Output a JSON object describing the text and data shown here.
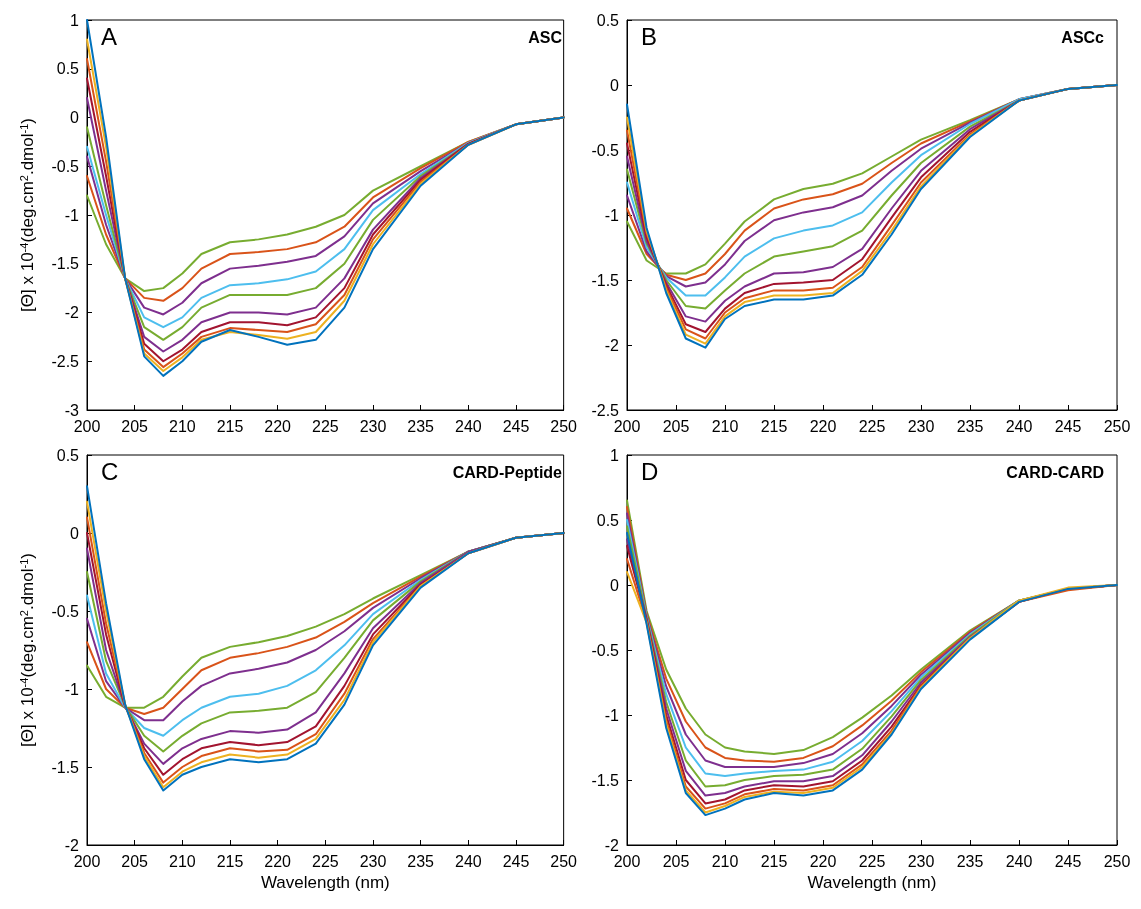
{
  "chart_data": [
    {
      "type": "line",
      "title": "ASC",
      "annotations": [
        "A"
      ],
      "ylabel": "[Θ] x 10$^{-4}$(deg.cm$^{2}$.dmol$^{-1}$)",
      "marker": "none",
      "xlim": [
        200,
        250
      ],
      "xticks": [
        200,
        205,
        210,
        215,
        220,
        225,
        230,
        235,
        240,
        245,
        250
      ],
      "ylim": [
        -3,
        1
      ],
      "yticks": [
        -3,
        -2.5,
        -2,
        -1.5,
        -1,
        -0.5,
        0,
        0.5,
        1
      ],
      "x": [
        200,
        202,
        204,
        206,
        208,
        210,
        212,
        215,
        218,
        221,
        224,
        227,
        230,
        235,
        240,
        245,
        250
      ],
      "series": [
        {
          "color": "#77ac30",
          "values": [
            -0.8,
            -1.3,
            -1.65,
            -1.78,
            -1.75,
            -1.6,
            -1.4,
            -1.28,
            -1.25,
            -1.2,
            -1.12,
            -1.0,
            -0.75,
            -0.5,
            -0.25,
            -0.07,
            0
          ]
        },
        {
          "color": "#d95319",
          "values": [
            -0.6,
            -1.2,
            -1.65,
            -1.85,
            -1.88,
            -1.75,
            -1.55,
            -1.4,
            -1.38,
            -1.35,
            -1.28,
            -1.12,
            -0.82,
            -0.52,
            -0.25,
            -0.07,
            0
          ]
        },
        {
          "color": "#7e2f8e",
          "values": [
            -0.4,
            -1.1,
            -1.65,
            -1.95,
            -2.02,
            -1.9,
            -1.7,
            -1.55,
            -1.52,
            -1.48,
            -1.42,
            -1.22,
            -0.88,
            -0.55,
            -0.26,
            -0.07,
            0
          ]
        },
        {
          "color": "#4dbeee",
          "values": [
            -0.3,
            -1.0,
            -1.65,
            -2.05,
            -2.15,
            -2.05,
            -1.85,
            -1.72,
            -1.7,
            -1.66,
            -1.58,
            -1.35,
            -0.95,
            -0.58,
            -0.26,
            -0.07,
            0
          ]
        },
        {
          "color": "#77ac30",
          "values": [
            -0.1,
            -0.9,
            -1.65,
            -2.15,
            -2.28,
            -2.15,
            -1.95,
            -1.82,
            -1.82,
            -1.82,
            -1.75,
            -1.5,
            -1.05,
            -0.6,
            -0.27,
            -0.07,
            0
          ]
        },
        {
          "color": "#7e2f8e",
          "values": [
            0.2,
            -0.75,
            -1.65,
            -2.25,
            -2.4,
            -2.28,
            -2.1,
            -2.0,
            -2.0,
            -2.02,
            -1.95,
            -1.65,
            -1.15,
            -0.62,
            -0.27,
            -0.07,
            0
          ]
        },
        {
          "color": "#a2142f",
          "values": [
            0.4,
            -0.6,
            -1.65,
            -2.32,
            -2.5,
            -2.38,
            -2.2,
            -2.1,
            -2.1,
            -2.13,
            -2.05,
            -1.75,
            -1.2,
            -0.64,
            -0.27,
            -0.07,
            0
          ]
        },
        {
          "color": "#d95319",
          "values": [
            0.6,
            -0.45,
            -1.65,
            -2.38,
            -2.56,
            -2.42,
            -2.25,
            -2.16,
            -2.18,
            -2.2,
            -2.12,
            -1.82,
            -1.25,
            -0.66,
            -0.28,
            -0.07,
            0
          ]
        },
        {
          "color": "#edb120",
          "values": [
            0.8,
            -0.3,
            -1.65,
            -2.42,
            -2.6,
            -2.46,
            -2.28,
            -2.2,
            -2.23,
            -2.27,
            -2.2,
            -1.88,
            -1.3,
            -0.68,
            -0.28,
            -0.07,
            0
          ]
        },
        {
          "color": "#0072bd",
          "values": [
            1.0,
            -0.2,
            -1.65,
            -2.45,
            -2.65,
            -2.5,
            -2.3,
            -2.18,
            -2.25,
            -2.33,
            -2.28,
            -1.95,
            -1.35,
            -0.7,
            -0.28,
            -0.07,
            0
          ]
        }
      ]
    },
    {
      "type": "line",
      "title": "ASCc",
      "annotations": [
        "B"
      ],
      "marker": "none",
      "xlim": [
        200,
        250
      ],
      "xticks": [
        200,
        205,
        210,
        215,
        220,
        225,
        230,
        235,
        240,
        245,
        250
      ],
      "ylim": [
        -2.5,
        0.5
      ],
      "yticks": [
        -2.5,
        -2,
        -1.5,
        -1,
        -0.5,
        0,
        0.5
      ],
      "x": [
        200,
        202,
        204,
        206,
        208,
        210,
        212,
        215,
        218,
        221,
        224,
        227,
        230,
        235,
        240,
        245,
        250
      ],
      "series": [
        {
          "color": "#77ac30",
          "values": [
            -1.05,
            -1.35,
            -1.45,
            -1.45,
            -1.38,
            -1.22,
            -1.05,
            -0.88,
            -0.8,
            -0.76,
            -0.68,
            -0.55,
            -0.42,
            -0.27,
            -0.11,
            -0.03,
            0
          ]
        },
        {
          "color": "#d95319",
          "values": [
            -0.95,
            -1.3,
            -1.46,
            -1.5,
            -1.45,
            -1.3,
            -1.12,
            -0.95,
            -0.88,
            -0.84,
            -0.76,
            -0.6,
            -0.45,
            -0.28,
            -0.11,
            -0.03,
            0
          ]
        },
        {
          "color": "#7e2f8e",
          "values": [
            -0.85,
            -1.28,
            -1.47,
            -1.55,
            -1.52,
            -1.38,
            -1.2,
            -1.04,
            -0.98,
            -0.94,
            -0.85,
            -0.66,
            -0.49,
            -0.29,
            -0.11,
            -0.03,
            0
          ]
        },
        {
          "color": "#4dbeee",
          "values": [
            -0.75,
            -1.25,
            -1.48,
            -1.62,
            -1.62,
            -1.48,
            -1.32,
            -1.18,
            -1.12,
            -1.08,
            -0.98,
            -0.75,
            -0.54,
            -0.3,
            -0.11,
            -0.03,
            0
          ]
        },
        {
          "color": "#77ac30",
          "values": [
            -0.65,
            -1.22,
            -1.5,
            -1.7,
            -1.72,
            -1.58,
            -1.45,
            -1.32,
            -1.28,
            -1.24,
            -1.12,
            -0.85,
            -0.6,
            -0.32,
            -0.12,
            -0.03,
            0
          ]
        },
        {
          "color": "#7e2f8e",
          "values": [
            -0.55,
            -1.2,
            -1.52,
            -1.78,
            -1.82,
            -1.66,
            -1.55,
            -1.45,
            -1.44,
            -1.4,
            -1.26,
            -0.95,
            -0.66,
            -0.34,
            -0.12,
            -0.03,
            0
          ]
        },
        {
          "color": "#a2142f",
          "values": [
            -0.45,
            -1.17,
            -1.54,
            -1.84,
            -1.9,
            -1.72,
            -1.6,
            -1.53,
            -1.52,
            -1.5,
            -1.34,
            -1.02,
            -0.71,
            -0.36,
            -0.12,
            -0.03,
            0
          ]
        },
        {
          "color": "#d95319",
          "values": [
            -0.35,
            -1.14,
            -1.56,
            -1.88,
            -1.95,
            -1.75,
            -1.64,
            -1.58,
            -1.58,
            -1.56,
            -1.4,
            -1.08,
            -0.75,
            -0.38,
            -0.12,
            -0.03,
            0
          ]
        },
        {
          "color": "#edb120",
          "values": [
            -0.25,
            -1.12,
            -1.58,
            -1.92,
            -1.99,
            -1.78,
            -1.67,
            -1.62,
            -1.62,
            -1.6,
            -1.43,
            -1.12,
            -0.78,
            -0.39,
            -0.12,
            -0.03,
            0
          ]
        },
        {
          "color": "#0072bd",
          "values": [
            -0.15,
            -1.1,
            -1.6,
            -1.95,
            -2.02,
            -1.8,
            -1.7,
            -1.65,
            -1.65,
            -1.62,
            -1.46,
            -1.15,
            -0.8,
            -0.4,
            -0.12,
            -0.03,
            0
          ]
        }
      ]
    },
    {
      "type": "line",
      "title": "CARD-Peptide",
      "annotations": [
        "C"
      ],
      "xlabel": "Wavelength (nm)",
      "ylabel": "[Θ] x 10$^{-4}$(deg.cm$^{2}$.dmol$^{-1}$)",
      "marker": "none",
      "xlim": [
        200,
        250
      ],
      "xticks": [
        200,
        205,
        210,
        215,
        220,
        225,
        230,
        235,
        240,
        245,
        250
      ],
      "ylim": [
        -2,
        0.5
      ],
      "yticks": [
        -2,
        -1.5,
        -1,
        -0.5,
        0,
        0.5
      ],
      "x": [
        200,
        202,
        204,
        206,
        208,
        210,
        212,
        215,
        218,
        221,
        224,
        227,
        230,
        235,
        240,
        245,
        250
      ],
      "series": [
        {
          "color": "#77ac30",
          "values": [
            -0.85,
            -1.05,
            -1.12,
            -1.12,
            -1.05,
            -0.92,
            -0.8,
            -0.73,
            -0.7,
            -0.66,
            -0.6,
            -0.52,
            -0.42,
            -0.27,
            -0.12,
            -0.03,
            0
          ]
        },
        {
          "color": "#d95319",
          "values": [
            -0.7,
            -1.0,
            -1.12,
            -1.16,
            -1.12,
            -1.0,
            -0.88,
            -0.8,
            -0.77,
            -0.73,
            -0.67,
            -0.57,
            -0.45,
            -0.28,
            -0.12,
            -0.03,
            0
          ]
        },
        {
          "color": "#7e2f8e",
          "values": [
            -0.55,
            -0.95,
            -1.12,
            -1.2,
            -1.2,
            -1.08,
            -0.98,
            -0.9,
            -0.87,
            -0.83,
            -0.75,
            -0.63,
            -0.48,
            -0.29,
            -0.12,
            -0.03,
            0
          ]
        },
        {
          "color": "#4dbeee",
          "values": [
            -0.4,
            -0.9,
            -1.12,
            -1.25,
            -1.3,
            -1.2,
            -1.12,
            -1.05,
            -1.03,
            -0.98,
            -0.88,
            -0.72,
            -0.52,
            -0.3,
            -0.12,
            -0.03,
            0
          ]
        },
        {
          "color": "#77ac30",
          "values": [
            -0.25,
            -0.82,
            -1.11,
            -1.3,
            -1.4,
            -1.3,
            -1.22,
            -1.15,
            -1.14,
            -1.12,
            -1.02,
            -0.8,
            -0.56,
            -0.31,
            -0.12,
            -0.03,
            0
          ]
        },
        {
          "color": "#7e2f8e",
          "values": [
            -0.1,
            -0.75,
            -1.11,
            -1.35,
            -1.48,
            -1.38,
            -1.32,
            -1.27,
            -1.28,
            -1.26,
            -1.15,
            -0.9,
            -0.61,
            -0.32,
            -0.12,
            -0.03,
            0
          ]
        },
        {
          "color": "#a2142f",
          "values": [
            0.0,
            -0.65,
            -1.11,
            -1.38,
            -1.55,
            -1.45,
            -1.38,
            -1.34,
            -1.36,
            -1.34,
            -1.24,
            -0.98,
            -0.65,
            -0.33,
            -0.13,
            -0.03,
            0
          ]
        },
        {
          "color": "#d95319",
          "values": [
            0.1,
            -0.58,
            -1.1,
            -1.41,
            -1.6,
            -1.5,
            -1.43,
            -1.38,
            -1.4,
            -1.39,
            -1.29,
            -1.03,
            -0.68,
            -0.34,
            -0.13,
            -0.03,
            0
          ]
        },
        {
          "color": "#edb120",
          "values": [
            0.2,
            -0.5,
            -1.1,
            -1.43,
            -1.63,
            -1.53,
            -1.47,
            -1.42,
            -1.44,
            -1.42,
            -1.32,
            -1.07,
            -0.7,
            -0.34,
            -0.13,
            -0.03,
            0
          ]
        },
        {
          "color": "#0072bd",
          "values": [
            0.3,
            -0.45,
            -1.1,
            -1.45,
            -1.65,
            -1.55,
            -1.5,
            -1.45,
            -1.47,
            -1.45,
            -1.35,
            -1.1,
            -0.72,
            -0.35,
            -0.13,
            -0.03,
            0
          ]
        }
      ]
    },
    {
      "type": "line",
      "title": "CARD-CARD",
      "annotations": [
        "D"
      ],
      "xlabel": "Wavelength (nm)",
      "marker": "none",
      "xlim": [
        200,
        250
      ],
      "xticks": [
        200,
        205,
        210,
        215,
        220,
        225,
        230,
        235,
        240,
        245,
        250
      ],
      "ylim": [
        -2,
        1
      ],
      "yticks": [
        -2,
        -1.5,
        -1,
        -0.5,
        0,
        0.5,
        1
      ],
      "x": [
        200,
        202,
        204,
        206,
        208,
        210,
        212,
        215,
        218,
        221,
        224,
        227,
        230,
        235,
        240,
        245,
        250
      ],
      "series": [
        {
          "color": "#77ac30",
          "values": [
            0.65,
            -0.2,
            -0.65,
            -0.95,
            -1.15,
            -1.25,
            -1.28,
            -1.3,
            -1.27,
            -1.17,
            -1.02,
            -0.85,
            -0.65,
            -0.35,
            -0.12,
            -0.03,
            0
          ]
        },
        {
          "color": "#d95319",
          "values": [
            0.6,
            -0.22,
            -0.72,
            -1.05,
            -1.25,
            -1.33,
            -1.35,
            -1.36,
            -1.33,
            -1.24,
            -1.08,
            -0.89,
            -0.67,
            -0.36,
            -0.12,
            -0.03,
            0
          ]
        },
        {
          "color": "#7e2f8e",
          "values": [
            0.55,
            -0.23,
            -0.78,
            -1.15,
            -1.35,
            -1.4,
            -1.4,
            -1.4,
            -1.37,
            -1.3,
            -1.14,
            -0.93,
            -0.69,
            -0.37,
            -0.12,
            -0.03,
            0
          ]
        },
        {
          "color": "#4dbeee",
          "values": [
            0.5,
            -0.24,
            -0.84,
            -1.25,
            -1.45,
            -1.47,
            -1.45,
            -1.43,
            -1.42,
            -1.36,
            -1.2,
            -0.97,
            -0.71,
            -0.38,
            -0.12,
            -0.03,
            0
          ]
        },
        {
          "color": "#77ac30",
          "values": [
            0.45,
            -0.25,
            -0.9,
            -1.35,
            -1.55,
            -1.54,
            -1.5,
            -1.47,
            -1.46,
            -1.42,
            -1.26,
            -1.01,
            -0.73,
            -0.39,
            -0.12,
            -0.03,
            0
          ]
        },
        {
          "color": "#7e2f8e",
          "values": [
            0.35,
            -0.26,
            -0.95,
            -1.43,
            -1.62,
            -1.6,
            -1.55,
            -1.51,
            -1.51,
            -1.47,
            -1.31,
            -1.05,
            -0.75,
            -0.4,
            -0.13,
            -0.03,
            0
          ]
        },
        {
          "color": "#a2142f",
          "values": [
            0.3,
            -0.27,
            -1.0,
            -1.5,
            -1.68,
            -1.65,
            -1.58,
            -1.54,
            -1.55,
            -1.51,
            -1.35,
            -1.09,
            -0.77,
            -0.41,
            -0.13,
            -0.03,
            0
          ]
        },
        {
          "color": "#d95319",
          "values": [
            0.2,
            -0.28,
            -1.04,
            -1.55,
            -1.72,
            -1.68,
            -1.61,
            -1.57,
            -1.58,
            -1.54,
            -1.38,
            -1.12,
            -0.78,
            -0.41,
            -0.13,
            -0.04,
            0
          ]
        },
        {
          "color": "#edb120",
          "values": [
            0.1,
            -0.29,
            -1.07,
            -1.58,
            -1.75,
            -1.7,
            -1.63,
            -1.59,
            -1.6,
            -1.56,
            -1.4,
            -1.14,
            -0.79,
            -0.41,
            -0.12,
            -0.02,
            0
          ]
        },
        {
          "color": "#0072bd",
          "values": [
            0.4,
            -0.3,
            -1.1,
            -1.6,
            -1.77,
            -1.72,
            -1.65,
            -1.6,
            -1.62,
            -1.58,
            -1.42,
            -1.15,
            -0.8,
            -0.42,
            -0.13,
            -0.03,
            0
          ]
        }
      ]
    }
  ]
}
